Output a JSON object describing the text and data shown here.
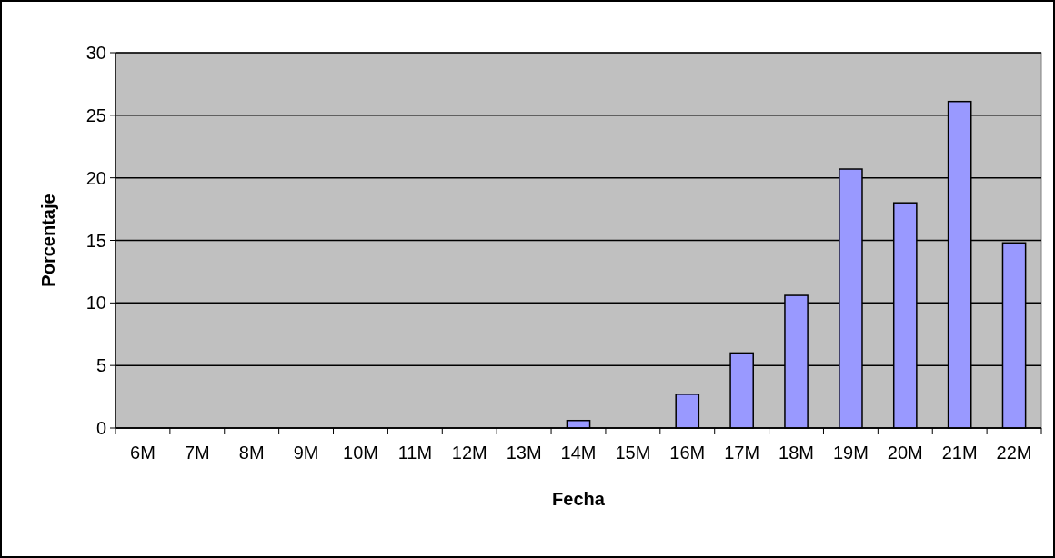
{
  "chart_data": {
    "type": "bar",
    "xlabel": "Fecha",
    "ylabel": "Porcentaje",
    "categories": [
      "6M",
      "7M",
      "8M",
      "9M",
      "10M",
      "11M",
      "12M",
      "13M",
      "14M",
      "15M",
      "16M",
      "17M",
      "18M",
      "19M",
      "20M",
      "21M",
      "22M"
    ],
    "values": [
      0,
      0,
      0,
      0,
      0,
      0,
      0,
      0,
      0.6,
      0,
      2.7,
      6.0,
      10.6,
      20.7,
      18.0,
      26.1,
      14.8
    ],
    "color": "#9999ff",
    "ylim": [
      0,
      30
    ],
    "yticks": [
      0,
      5,
      10,
      15,
      20,
      25,
      30
    ],
    "grid": "y"
  }
}
